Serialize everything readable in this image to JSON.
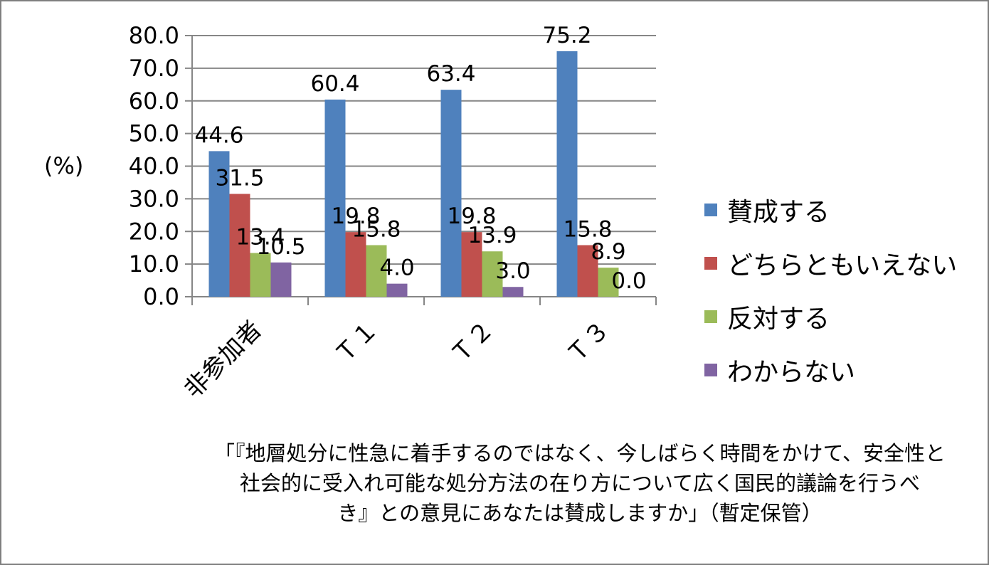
{
  "chart_data": {
    "type": "bar",
    "categories": [
      "非参加者",
      "Ｔ１",
      "Ｔ２",
      "Ｔ３"
    ],
    "series": [
      {
        "name": "賛成する",
        "color": "#4f81bd",
        "values": [
          44.6,
          60.4,
          63.4,
          75.2
        ]
      },
      {
        "name": "どちらともいえない",
        "color": "#c0504d",
        "values": [
          31.5,
          19.8,
          19.8,
          15.8
        ]
      },
      {
        "name": "反対する",
        "color": "#9bbb59",
        "values": [
          13.4,
          15.8,
          13.9,
          8.9
        ]
      },
      {
        "name": "わからない",
        "color": "#8064a2",
        "values": [
          10.5,
          4.0,
          3.0,
          0.0
        ]
      }
    ],
    "ylabel": "(%)",
    "ylim": [
      0,
      80
    ],
    "yticks": [
      "0.0",
      "10.0",
      "20.0",
      "30.0",
      "40.0",
      "50.0",
      "60.0",
      "70.0",
      "80.0"
    ],
    "grid": true,
    "legend": "right",
    "caption_lines": [
      "「『地層処分に性急に着手するのではなく、今しばらく時間をかけて、安全性と",
      "社会的に受入れ可能な処分方法の在り方について広く国民的議論を行うべ",
      "き』との意見にあなたは賛成しますか」（暫定保管）"
    ]
  }
}
